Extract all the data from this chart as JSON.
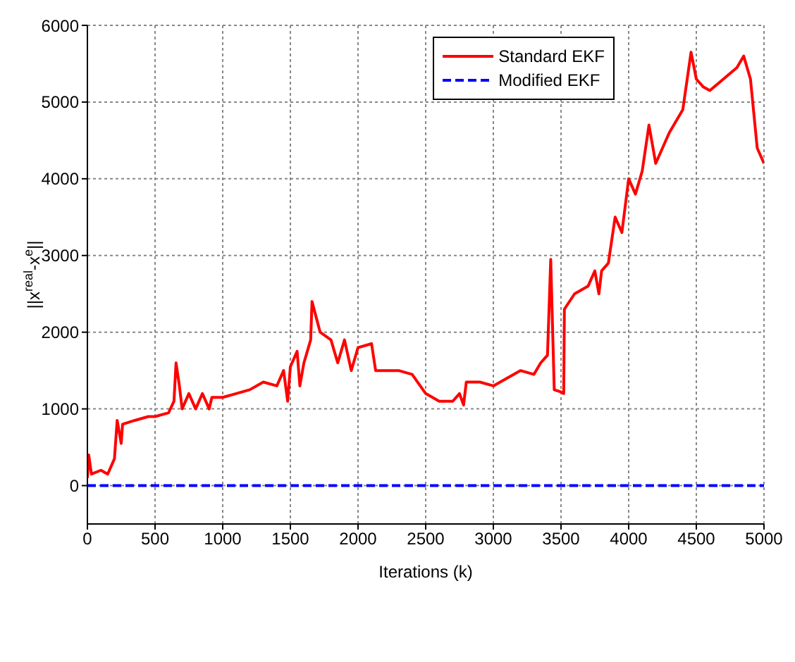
{
  "chart_data": {
    "type": "line",
    "xlabel": "Iterations (k)",
    "ylabel": "||x$^{real}$-x$^{e}$||",
    "xlim": [
      0,
      5000
    ],
    "xticks": [
      0,
      500,
      1000,
      1500,
      2000,
      2500,
      3000,
      3500,
      4000,
      4500,
      5000
    ],
    "ylim": [
      -500,
      6000
    ],
    "yticks": [
      0,
      1000,
      2000,
      3000,
      4000,
      5000,
      6000
    ],
    "grid": true,
    "legend": "top right",
    "series": [
      {
        "name": "Standard EKF",
        "color": "#ff0000",
        "line_style": "solid",
        "x": [
          0,
          10,
          30,
          100,
          150,
          200,
          220,
          250,
          260,
          350,
          450,
          500,
          600,
          640,
          655,
          680,
          700,
          750,
          800,
          850,
          900,
          920,
          1000,
          1100,
          1200,
          1300,
          1400,
          1450,
          1480,
          1500,
          1550,
          1570,
          1600,
          1650,
          1660,
          1720,
          1800,
          1850,
          1900,
          1950,
          2000,
          2100,
          2130,
          2300,
          2400,
          2500,
          2600,
          2700,
          2750,
          2780,
          2800,
          2900,
          3000,
          3200,
          3300,
          3350,
          3400,
          3424,
          3450,
          3500,
          3520,
          3525,
          3600,
          3700,
          3750,
          3780,
          3800,
          3850,
          3900,
          3950,
          4000,
          4050,
          4100,
          4150,
          4200,
          4250,
          4300,
          4400,
          4461,
          4500,
          4550,
          4600,
          4700,
          4800,
          4850,
          4900,
          4950,
          5000
        ],
        "values": [
          100,
          400,
          150,
          200,
          150,
          350,
          850,
          550,
          800,
          850,
          900,
          900,
          950,
          1100,
          1600,
          1300,
          1000,
          1200,
          1000,
          1200,
          1000,
          1150,
          1150,
          1200,
          1250,
          1350,
          1300,
          1500,
          1100,
          1550,
          1750,
          1300,
          1600,
          1900,
          2400,
          2000,
          1900,
          1600,
          1900,
          1500,
          1800,
          1850,
          1500,
          1500,
          1450,
          1200,
          1100,
          1100,
          1200,
          1050,
          1350,
          1350,
          1300,
          1500,
          1450,
          1600,
          1700,
          2950,
          1250,
          1220,
          1200,
          2300,
          2500,
          2600,
          2800,
          2500,
          2800,
          2900,
          3500,
          3300,
          4000,
          3800,
          4100,
          4700,
          4200,
          4400,
          4600,
          4900,
          5650,
          5300,
          5200,
          5150,
          5300,
          5450,
          5600,
          5300,
          4400,
          4200
        ]
      },
      {
        "name": "Modified EKF",
        "color": "#0000ff",
        "line_style": "dashed",
        "x": [
          0,
          5000
        ],
        "values": [
          0,
          0
        ]
      }
    ]
  }
}
